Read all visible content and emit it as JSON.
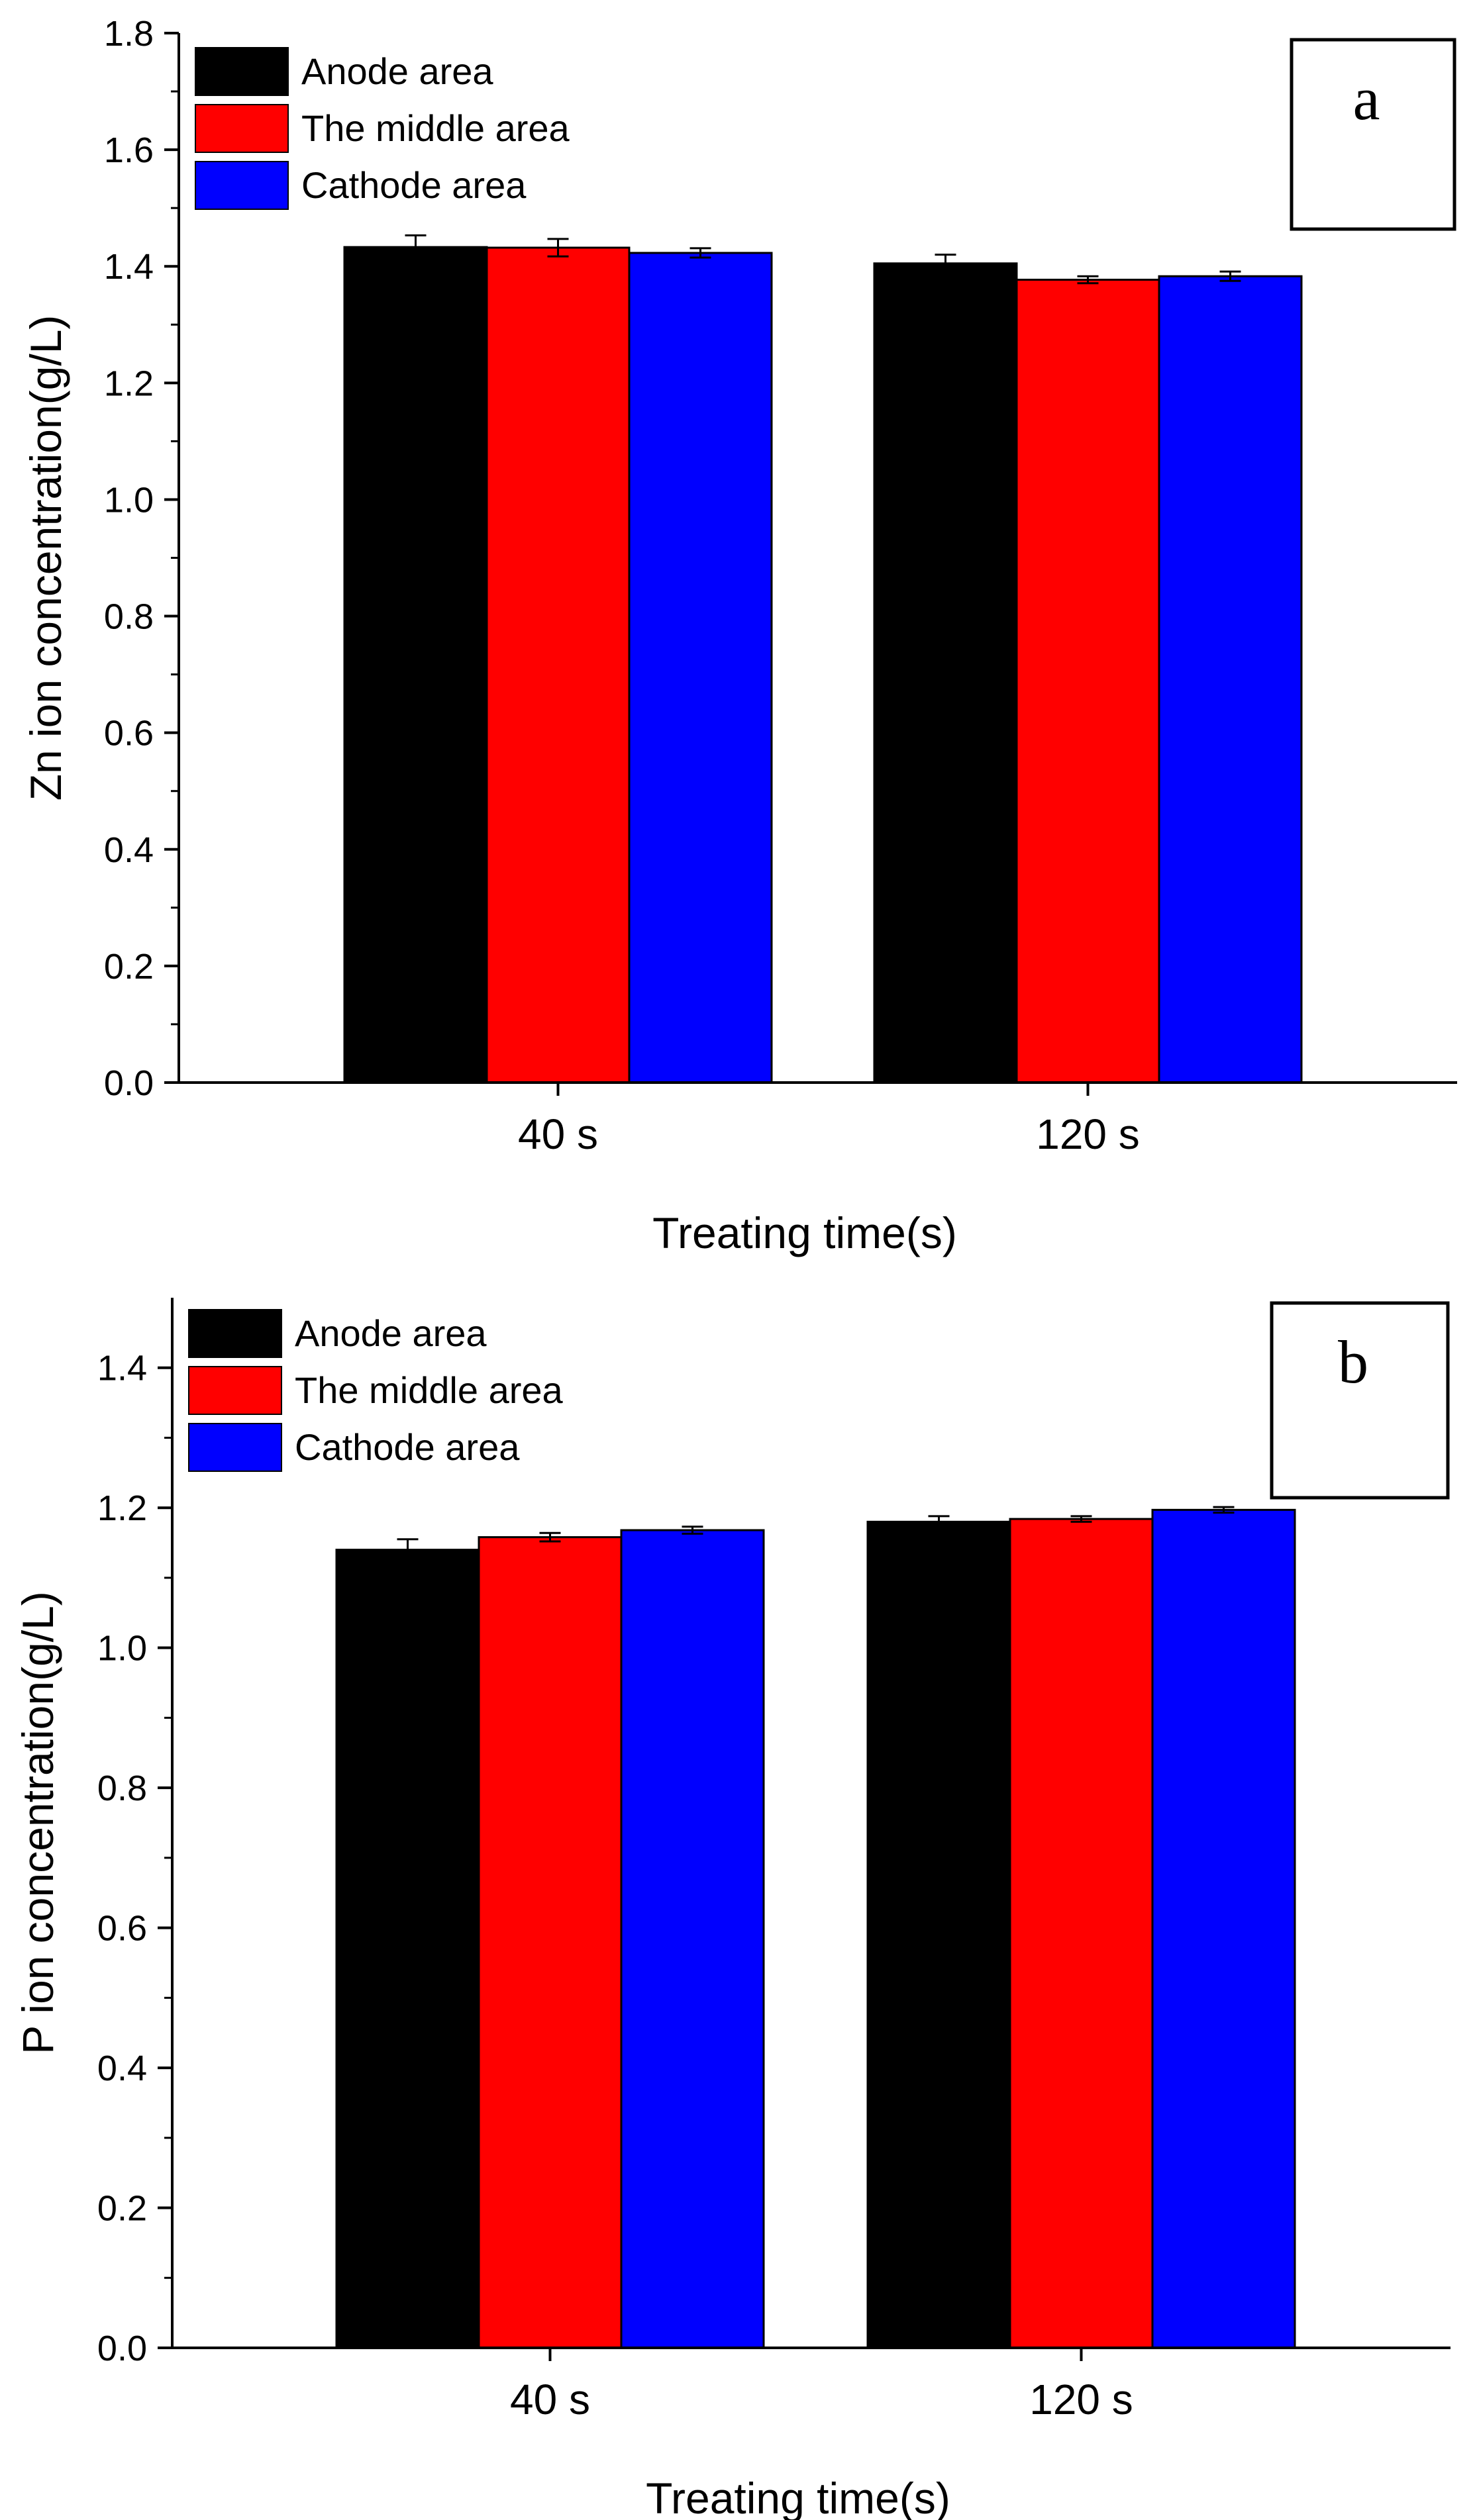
{
  "chart_data": [
    {
      "type": "bar",
      "panel_label": "a",
      "title": "",
      "xlabel": "Treating time(s)",
      "ylabel": "Zn ion concentration(g/L)",
      "ylim": [
        0,
        1.8
      ],
      "yticks": [
        "0.0",
        "0.2",
        "0.4",
        "0.6",
        "0.8",
        "1.0",
        "1.2",
        "1.4",
        "1.6",
        "1.8"
      ],
      "categories": [
        "40 s",
        "120 s"
      ],
      "legend_position": "top-left",
      "series": [
        {
          "name": "Anode area",
          "color": "#000000",
          "values": [
            1.433,
            1.405
          ],
          "errors": [
            0.02,
            0.015
          ]
        },
        {
          "name": "The middle area",
          "color": "#ff0000",
          "values": [
            1.432,
            1.377
          ],
          "errors": [
            0.015,
            0.006
          ]
        },
        {
          "name": "Cathode area",
          "color": "#0000ff",
          "values": [
            1.423,
            1.383
          ],
          "errors": [
            0.008,
            0.008
          ]
        }
      ]
    },
    {
      "type": "bar",
      "panel_label": "b",
      "title": "",
      "xlabel": "Treating time(s)",
      "ylabel": "P ion concentration(g/L)",
      "ylim": [
        0,
        1.5
      ],
      "yticks": [
        "0.0",
        "0.2",
        "0.4",
        "0.6",
        "0.8",
        "1.0",
        "1.2",
        "1.4"
      ],
      "categories": [
        "40 s",
        "120 s"
      ],
      "legend_position": "top-left",
      "series": [
        {
          "name": "Anode area",
          "color": "#000000",
          "values": [
            1.14,
            1.18
          ],
          "errors": [
            0.015,
            0.008
          ]
        },
        {
          "name": "The middle area",
          "color": "#ff0000",
          "values": [
            1.158,
            1.184
          ],
          "errors": [
            0.006,
            0.004
          ]
        },
        {
          "name": "Cathode area",
          "color": "#0000ff",
          "values": [
            1.168,
            1.197
          ],
          "errors": [
            0.005,
            0.004
          ]
        }
      ]
    }
  ]
}
